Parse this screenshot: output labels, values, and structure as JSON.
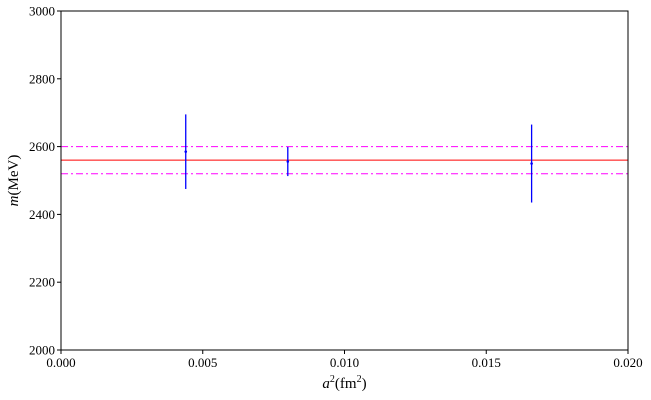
{
  "chart_data": {
    "type": "scatter",
    "title": "",
    "xlabel_base": "a",
    "xlabel_exp": "2",
    "xlabel_unit": "(fm",
    "xlabel_unit_exp": "2",
    "xlabel_close": ")",
    "ylabel_var": "m",
    "ylabel_unit": "(MeV)",
    "xlim": [
      0.0,
      0.02
    ],
    "ylim": [
      2000,
      3000
    ],
    "xticks": [
      0.0,
      0.005,
      0.01,
      0.015,
      0.02
    ],
    "xtick_labels": [
      "0.000",
      "0.005",
      "0.010",
      "0.015",
      "0.020"
    ],
    "yticks": [
      2000,
      2200,
      2400,
      2600,
      2800,
      3000
    ],
    "ytick_labels": [
      "2000",
      "2200",
      "2400",
      "2600",
      "2800",
      "3000"
    ],
    "grid": false,
    "series": [
      {
        "kind": "errorbar",
        "color": "#0000ff",
        "points": [
          {
            "x": 0.0044,
            "y": 2585,
            "yerr_low": 110,
            "yerr_high": 110
          },
          {
            "x": 0.008,
            "y": 2556,
            "yerr_low": 43,
            "yerr_high": 43
          },
          {
            "x": 0.0166,
            "y": 2550,
            "yerr_low": 115,
            "yerr_high": 115
          }
        ]
      }
    ],
    "hlines": [
      {
        "y": 2560,
        "color": "#ff0000",
        "style": "solid"
      },
      {
        "y": 2600,
        "color": "#ff00ff",
        "style": "dashdot"
      },
      {
        "y": 2520,
        "color": "#ff00ff",
        "style": "dashdot"
      }
    ]
  }
}
